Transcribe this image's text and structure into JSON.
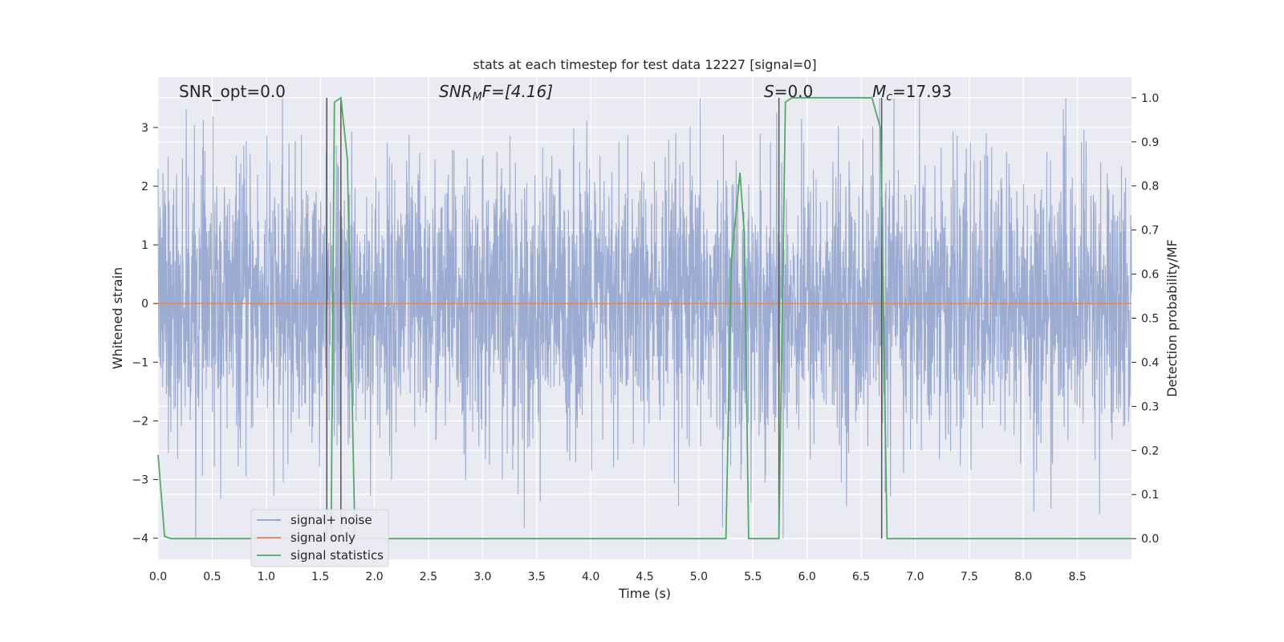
{
  "chart_data": {
    "type": "line",
    "title": "stats at each timestep for test data 12227 [signal=0]",
    "xlabel": "Time (s)",
    "ylabel": "Whitened strain",
    "y2label": "Detection probability/MF",
    "xlim": [
      0.0,
      9.0
    ],
    "ylim": [
      -4.36,
      3.86
    ],
    "y2lim": [
      -0.047,
      1.047
    ],
    "x_ticks": [
      0.0,
      0.5,
      1.0,
      1.5,
      2.0,
      2.5,
      3.0,
      3.5,
      4.0,
      4.5,
      5.0,
      5.5,
      6.0,
      6.5,
      7.0,
      7.5,
      8.0,
      8.5
    ],
    "x_tick_labels": [
      "0.0",
      "0.5",
      "1.0",
      "1.5",
      "2.0",
      "2.5",
      "3.0",
      "3.5",
      "4.0",
      "4.5",
      "5.0",
      "5.5",
      "6.0",
      "6.5",
      "7.0",
      "7.5",
      "8.0",
      "8.5"
    ],
    "y_ticks": [
      3,
      2,
      1,
      0,
      -1,
      -2,
      -3,
      -4
    ],
    "y_tick_labels": [
      "3",
      "2",
      "1",
      "0",
      "−1",
      "−2",
      "−3",
      "−4"
    ],
    "y2_ticks": [
      1.0,
      0.9,
      0.8,
      0.7,
      0.6,
      0.5,
      0.4,
      0.3,
      0.2,
      0.1,
      0.0
    ],
    "y2_tick_labels": [
      "1.0",
      "0.9",
      "0.8",
      "0.7",
      "0.6",
      "0.5",
      "0.4",
      "0.3",
      "0.2",
      "0.1",
      "0.0"
    ],
    "grid": true,
    "legend_position": "bottom-left",
    "colors": {
      "plot_bg": "#eaeaf2",
      "grid": "#ffffff",
      "noise": "#8da0cb",
      "signal": "#dd8452",
      "stats": "#55a868",
      "vline": "#555555"
    },
    "series": [
      {
        "name": "signal+ noise",
        "kind": "strain noise trace (~1.2 std, spikes to ±3.5)",
        "x_range": [
          0.0,
          9.0
        ]
      },
      {
        "name": "signal only",
        "values_x": [
          0.0,
          9.0
        ],
        "values_y": [
          0.0,
          0.0
        ]
      },
      {
        "name": "signal statistics",
        "x": [
          0.0,
          0.06,
          0.12,
          1.56,
          1.6,
          1.63,
          1.69,
          1.75,
          1.82,
          1.9,
          5.25,
          5.3,
          5.38,
          5.42,
          5.46,
          5.56,
          5.74,
          5.8,
          5.86,
          6.6,
          6.68,
          6.74,
          6.8,
          9.0
        ],
        "y": [
          0.19,
          0.005,
          0.0,
          0.0,
          0.0,
          0.99,
          1.0,
          0.86,
          0.0,
          0.0,
          0.0,
          0.63,
          0.83,
          0.69,
          0.0,
          0.0,
          0.0,
          0.99,
          1.0,
          1.0,
          0.93,
          0.0,
          0.0,
          0.0
        ]
      }
    ],
    "vlines": [
      {
        "x": 1.56,
        "y2_top": 1.0
      },
      {
        "x": 1.69,
        "y2_top": 1.0
      },
      {
        "x": 5.74,
        "y2_top": 1.0
      },
      {
        "x": 6.69,
        "y2_top": 1.0
      }
    ],
    "annotations": [
      {
        "id": "snr-opt",
        "text": "SNR_opt=0.0"
      },
      {
        "id": "snr-mf",
        "base": "SNR",
        "sub": "M",
        "rest": "F=[4.16]"
      },
      {
        "id": "s-stat",
        "italic": "S",
        "rest": "=0.0"
      },
      {
        "id": "chirp-mass",
        "base": "M",
        "sub": "c",
        "rest": "=17.93"
      }
    ]
  }
}
